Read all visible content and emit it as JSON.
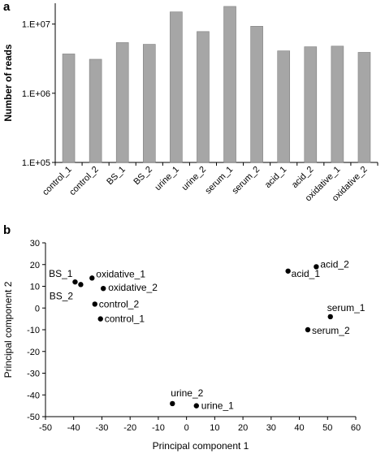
{
  "chart_data": [
    {
      "panel_label": "a",
      "type": "bar",
      "yscale": "log",
      "ylabel": "Number of reads",
      "ylim": [
        100000,
        20000000
      ],
      "yticks": [
        {
          "value": 100000,
          "label": "1.E+05"
        },
        {
          "value": 1000000,
          "label": "1.E+06"
        },
        {
          "value": 10000000,
          "label": "1.E+07"
        }
      ],
      "categories": [
        "control_1",
        "control_2",
        "BS_1",
        "BS_2",
        "urine_1",
        "urine_2",
        "serum_1",
        "serum_2",
        "acid_1",
        "acid_2",
        "oxidative_1",
        "oxidative_2"
      ],
      "values": [
        3700000,
        3100000,
        5400000,
        5100000,
        15000000,
        7800000,
        18000000,
        9300000,
        4100000,
        4700000,
        4800000,
        3900000
      ],
      "bar_color": "#a6a6a6",
      "grid": false,
      "legend": "none"
    },
    {
      "panel_label": "b",
      "type": "scatter",
      "xlabel": "Principal component 1",
      "ylabel": "Principal component 2",
      "xlim": [
        -50,
        60
      ],
      "ylim": [
        -50,
        30
      ],
      "xticks": [
        -50,
        -40,
        -30,
        -20,
        -10,
        0,
        10,
        20,
        30,
        40,
        50,
        60
      ],
      "yticks": [
        30,
        20,
        10,
        0,
        -10,
        -20,
        -30,
        -40,
        -50
      ],
      "point_color": "#000000",
      "grid": false,
      "legend": "none",
      "points": [
        {
          "label": "BS_1",
          "x": -39.5,
          "y": 12.0
        },
        {
          "label": "BS_2",
          "x": -37.5,
          "y": 10.8
        },
        {
          "label": "oxidative_1",
          "x": -33.5,
          "y": 13.8
        },
        {
          "label": "oxidative_2",
          "x": -29.5,
          "y": 9.0
        },
        {
          "label": "control_2",
          "x": -32.5,
          "y": 1.8
        },
        {
          "label": "control_1",
          "x": -30.5,
          "y": -5.0
        },
        {
          "label": "acid_1",
          "x": 36.0,
          "y": 17.0
        },
        {
          "label": "acid_2",
          "x": 46.0,
          "y": 19.0
        },
        {
          "label": "serum_1",
          "x": 51.0,
          "y": -4.0
        },
        {
          "label": "serum_2",
          "x": 43.0,
          "y": -10.0
        },
        {
          "label": "urine_2",
          "x": -5.0,
          "y": -44.0
        },
        {
          "label": "urine_1",
          "x": 3.5,
          "y": -45.0
        }
      ]
    }
  ]
}
